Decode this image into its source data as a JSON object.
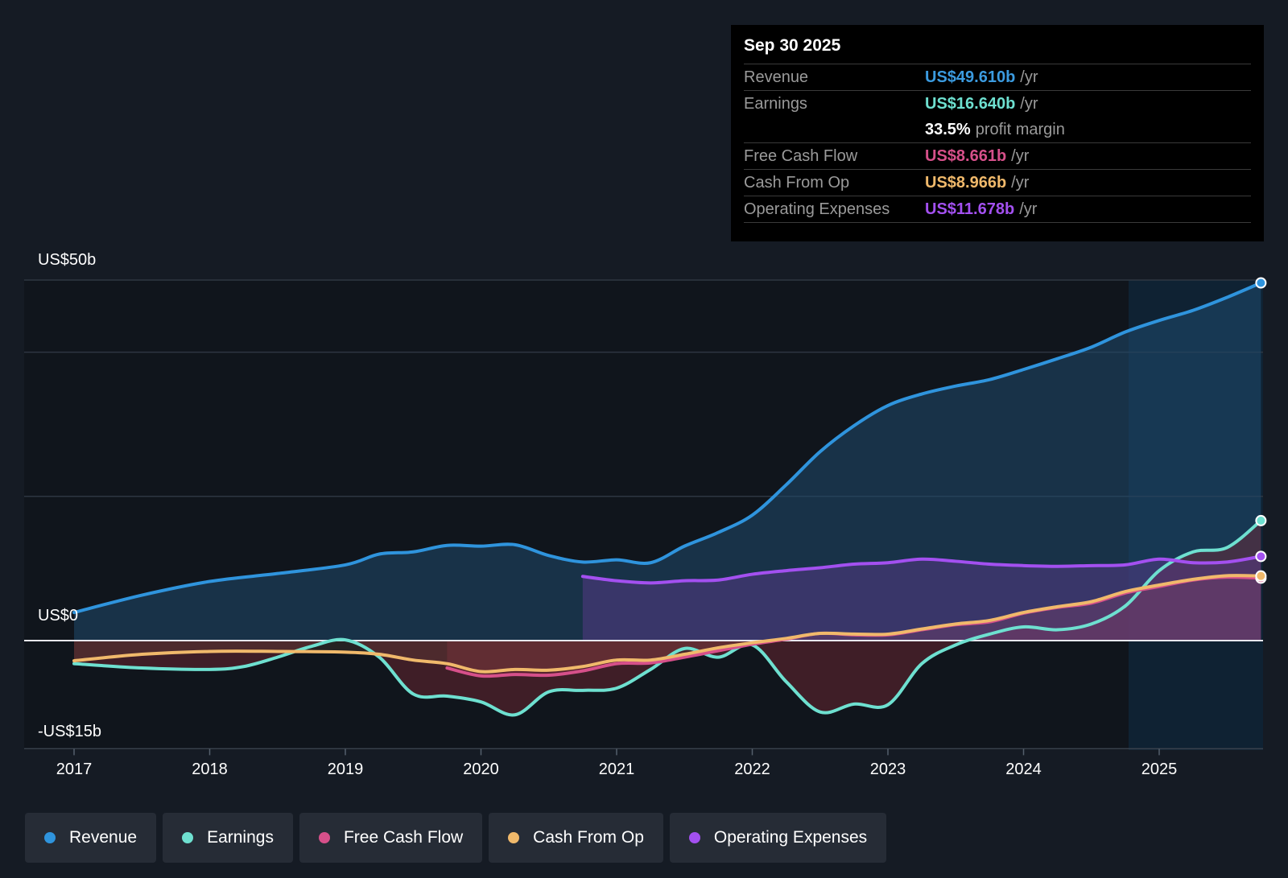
{
  "tooltip": {
    "date": "Sep 30 2025",
    "rows": [
      {
        "label": "Revenue",
        "value": "US$49.610b",
        "unit": "/yr",
        "color": "#3b9be0"
      },
      {
        "label": "Earnings",
        "value": "US$16.640b",
        "unit": "/yr",
        "color": "#6ee0d0"
      },
      {
        "label": "",
        "value": "33.5%",
        "unit": "profit margin",
        "color": "#ffffff"
      },
      {
        "label": "Free Cash Flow",
        "value": "US$8.661b",
        "unit": "/yr",
        "color": "#d6508a"
      },
      {
        "label": "Cash From Op",
        "value": "US$8.966b",
        "unit": "/yr",
        "color": "#f0b96b"
      },
      {
        "label": "Operating Expenses",
        "value": "US$11.678b",
        "unit": "/yr",
        "color": "#a350f0"
      }
    ]
  },
  "chart_data": {
    "type": "line",
    "ylim": [
      -15,
      50
    ],
    "y_tick_labels": [
      "US$50b",
      "US$0",
      "-US$15b"
    ],
    "x_tick_labels": [
      "2017",
      "2018",
      "2019",
      "2020",
      "2021",
      "2022",
      "2023",
      "2024",
      "2025"
    ],
    "grid": true,
    "legend_placement": "bottom",
    "series": [
      {
        "name": "Revenue",
        "color": "#2f94dd",
        "x": [
          2017,
          2017.5,
          2018,
          2018.5,
          2019,
          2019.25,
          2019.5,
          2019.75,
          2020,
          2020.25,
          2020.5,
          2020.75,
          2021,
          2021.25,
          2021.5,
          2021.75,
          2022,
          2022.25,
          2022.5,
          2022.75,
          2023,
          2023.25,
          2023.5,
          2023.75,
          2024,
          2024.25,
          2024.5,
          2024.75,
          2025,
          2025.25,
          2025.5,
          2025.75
        ],
        "values": [
          3.9,
          6.3,
          8.2,
          9.3,
          10.5,
          12.0,
          12.3,
          13.2,
          13.1,
          13.3,
          11.8,
          10.9,
          11.2,
          10.8,
          13.1,
          15.0,
          17.4,
          21.6,
          26.2,
          29.8,
          32.6,
          34.2,
          35.3,
          36.2,
          37.6,
          39.1,
          40.7,
          42.8,
          44.4,
          45.8,
          47.6,
          49.61
        ]
      },
      {
        "name": "Earnings",
        "color": "#6ee0d0",
        "x": [
          2017,
          2017.5,
          2018,
          2018.25,
          2018.5,
          2018.75,
          2019,
          2019.25,
          2019.5,
          2019.75,
          2020,
          2020.25,
          2020.5,
          2020.75,
          2021,
          2021.25,
          2021.5,
          2021.75,
          2022,
          2022.25,
          2022.5,
          2022.75,
          2023,
          2023.25,
          2023.5,
          2023.75,
          2024,
          2024.25,
          2024.5,
          2024.75,
          2025,
          2025.25,
          2025.5,
          2025.75
        ],
        "values": [
          -3.2,
          -3.8,
          -4.0,
          -3.6,
          -2.3,
          -0.8,
          0.1,
          -2.3,
          -7.4,
          -7.7,
          -8.5,
          -10.3,
          -7.1,
          -6.9,
          -6.6,
          -4.0,
          -1.1,
          -2.3,
          -0.6,
          -5.7,
          -9.9,
          -8.8,
          -8.9,
          -3.2,
          -0.6,
          0.9,
          1.9,
          1.5,
          2.3,
          4.8,
          9.7,
          12.3,
          12.9,
          16.64
        ]
      },
      {
        "name": "Free Cash Flow",
        "color": "#d6508a",
        "x": [
          2019.75,
          2020,
          2020.25,
          2020.5,
          2020.75,
          2021,
          2021.25,
          2021.5,
          2021.75,
          2022,
          2022.25,
          2022.5,
          2022.75,
          2023,
          2023.25,
          2023.5,
          2023.75,
          2024,
          2024.25,
          2024.5,
          2024.75,
          2025,
          2025.25,
          2025.5,
          2025.75
        ],
        "values": [
          -3.8,
          -4.9,
          -4.7,
          -4.8,
          -4.2,
          -3.2,
          -3.1,
          -2.3,
          -1.4,
          -0.5,
          0.2,
          1.0,
          0.8,
          0.8,
          1.5,
          2.2,
          2.6,
          3.8,
          4.6,
          5.2,
          6.6,
          7.5,
          8.4,
          8.8,
          8.661
        ]
      },
      {
        "name": "Cash From Op",
        "color": "#f0b96b",
        "x": [
          2017,
          2017.5,
          2018,
          2018.5,
          2019,
          2019.25,
          2019.5,
          2019.75,
          2020,
          2020.25,
          2020.5,
          2020.75,
          2021,
          2021.25,
          2021.5,
          2021.75,
          2022,
          2022.25,
          2022.5,
          2022.75,
          2023,
          2023.25,
          2023.5,
          2023.75,
          2024,
          2024.25,
          2024.5,
          2024.75,
          2025,
          2025.25,
          2025.5,
          2025.75
        ],
        "values": [
          -2.8,
          -1.9,
          -1.5,
          -1.5,
          -1.6,
          -1.9,
          -2.7,
          -3.2,
          -4.3,
          -4.0,
          -4.1,
          -3.6,
          -2.7,
          -2.7,
          -1.9,
          -1.0,
          -0.3,
          0.3,
          1.0,
          0.9,
          0.9,
          1.6,
          2.3,
          2.8,
          3.9,
          4.7,
          5.4,
          6.8,
          7.7,
          8.5,
          9.0,
          8.966
        ]
      },
      {
        "name": "Operating Expenses",
        "color": "#a350f0",
        "x": [
          2020.75,
          2021,
          2021.25,
          2021.5,
          2021.75,
          2022,
          2022.25,
          2022.5,
          2022.75,
          2023,
          2023.25,
          2023.5,
          2023.75,
          2024,
          2024.25,
          2024.5,
          2024.75,
          2025,
          2025.25,
          2025.5,
          2025.75
        ],
        "values": [
          8.9,
          8.3,
          8.0,
          8.3,
          8.4,
          9.2,
          9.7,
          10.1,
          10.6,
          10.8,
          11.3,
          11.0,
          10.6,
          10.4,
          10.3,
          10.4,
          10.5,
          11.3,
          10.8,
          10.9,
          11.678
        ]
      }
    ]
  },
  "legend": [
    "Revenue",
    "Earnings",
    "Free Cash Flow",
    "Cash From Op",
    "Operating Expenses"
  ]
}
